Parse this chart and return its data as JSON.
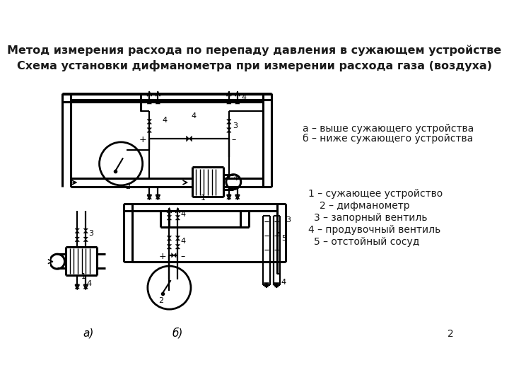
{
  "title_line1": "Метод измерения расхода по перепаду давления в сужающем устройстве",
  "title_line2": "Схема установки дифманометра при измерении расхода газа (воздуха)",
  "legend_ab_line1": "а – выше сужающего устройства",
  "legend_ab_line2": "б – ниже сужающего устройства",
  "legend_nums": [
    "1 – сужающее устройство",
    "2 – дифманометр",
    "3 – запорный вентиль",
    "4 – продувочный вентиль",
    "5 – отстойный сосуд"
  ],
  "legend_nums_indent": [
    0,
    20,
    10,
    0,
    10
  ],
  "bg_color": "#ffffff",
  "text_color": "#1a1a1a",
  "title_fontsize": 11.5,
  "legend_fontsize": 10,
  "page_number": "2"
}
